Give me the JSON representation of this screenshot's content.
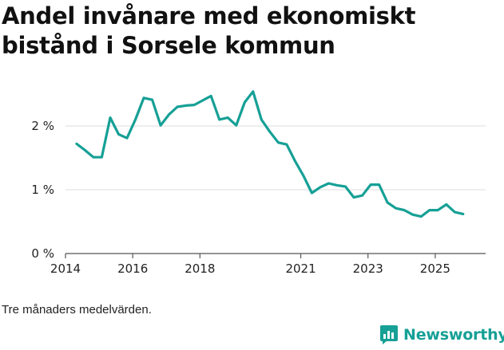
{
  "chart_data": {
    "type": "line",
    "title": "Andel invånare med ekonomiskt bistånd i Sorsele kommun",
    "xlabel": "",
    "ylabel": "",
    "ylim": [
      0,
      2.75
    ],
    "xlim": [
      2014,
      2026.5
    ],
    "x_ticks": [
      2014,
      2016,
      2018,
      2021,
      2023,
      2025
    ],
    "y_ticks": [
      {
        "value": 0,
        "label": "0 %"
      },
      {
        "value": 1,
        "label": "1 %"
      },
      {
        "value": 2,
        "label": "2 %"
      }
    ],
    "series": [
      {
        "name": "Andel",
        "color": "#16a096",
        "x": [
          2014.33,
          2014.58,
          2014.83,
          2015.08,
          2015.33,
          2015.58,
          2015.83,
          2016.08,
          2016.33,
          2016.58,
          2016.83,
          2017.08,
          2017.33,
          2017.58,
          2017.83,
          2018.08,
          2018.33,
          2018.58,
          2018.83,
          2019.08,
          2019.33,
          2019.58,
          2019.83,
          2020.08,
          2020.33,
          2020.58,
          2020.83,
          2021.08,
          2021.33,
          2021.58,
          2021.83,
          2022.08,
          2022.33,
          2022.58,
          2022.83,
          2023.08,
          2023.33,
          2023.58,
          2023.83,
          2024.08,
          2024.33,
          2024.58,
          2024.83,
          2025.08,
          2025.33,
          2025.58,
          2025.83
        ],
        "values": [
          1.72,
          1.62,
          1.51,
          1.51,
          2.13,
          1.87,
          1.81,
          2.1,
          2.44,
          2.41,
          2.01,
          2.18,
          2.3,
          2.32,
          2.33,
          2.4,
          2.47,
          2.1,
          2.13,
          2.01,
          2.37,
          2.54,
          2.1,
          1.91,
          1.74,
          1.71,
          1.45,
          1.22,
          0.95,
          1.04,
          1.1,
          1.07,
          1.05,
          0.88,
          0.91,
          1.08,
          1.08,
          0.8,
          0.71,
          0.68,
          0.61,
          0.58,
          0.68,
          0.68,
          0.77,
          0.65,
          0.62
        ]
      }
    ]
  },
  "note": "Tre månaders medelvärden.",
  "brand": {
    "name": "Newsworthy",
    "color": "#16a096",
    "icon": "bar-chart-logo-icon"
  }
}
